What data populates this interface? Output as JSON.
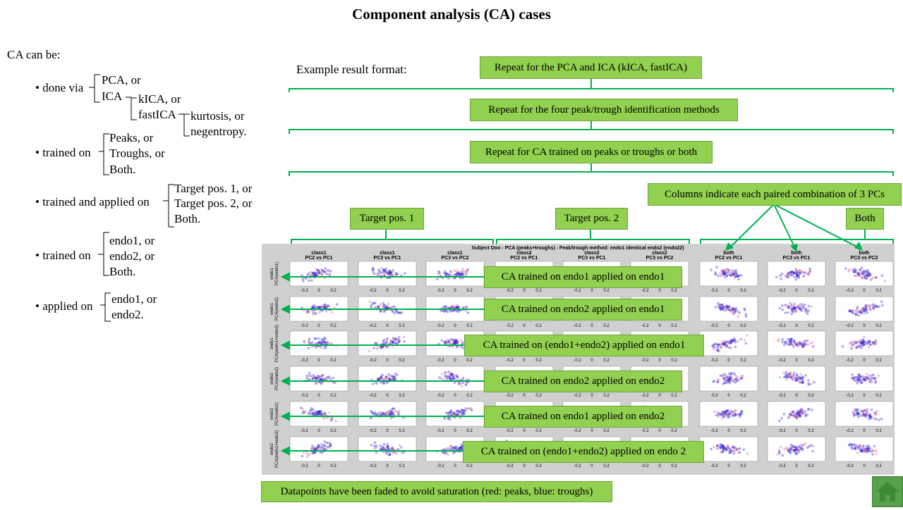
{
  "title": "Component analysis (CA) cases",
  "left": {
    "heading": "CA can be:",
    "done_via": {
      "label": "• done via",
      "opt1": "PCA, or",
      "opt2": "ICA",
      "ica_opt1": "kICA, or",
      "ica_opt2": "fastICA",
      "fast_opt1": "kurtosis, or",
      "fast_opt2": "negentropy."
    },
    "trained_on_peaks": {
      "label": "• trained on",
      "opts": [
        "Peaks, or",
        "Troughs, or",
        "Both."
      ]
    },
    "trained_applied": {
      "label": "• trained and applied on",
      "opts": [
        "Target pos. 1, or",
        "Target pos. 2, or",
        "Both."
      ]
    },
    "trained_on_endo": {
      "label": "• trained on",
      "opts": [
        "endo1, or",
        "endo2, or",
        "Both."
      ]
    },
    "applied_on": {
      "label": "• applied on",
      "opts": [
        "endo1, or",
        "endo2."
      ]
    }
  },
  "example_label": "Example result format:",
  "boxes": {
    "repeat_pca": "Repeat for the PCA and ICA (kICA, fastICA)",
    "repeat_peak": "Repeat for the four peak/trough identification methods",
    "repeat_ca": "Repeat for CA trained on peaks or troughs or both",
    "columns": "Columns indicate each paired combination of 3 PCs",
    "target1": "Target pos. 1",
    "target2": "Target pos. 2",
    "both": "Both",
    "footer": "Datapoints have been faded to avoid saturation (red: peaks, blue: troughs)"
  },
  "rows": [
    "CA trained on endo1 applied on endo1",
    "CA trained on endo2 applied on endo1",
    "CA trained on (endo1+endo2) applied on endo1",
    "CA trained on endo2 applied on endo2",
    "CA trained on endo1 applied on endo2",
    "CA trained on (endo1+endo2) applied on endo 2"
  ],
  "figure": {
    "suptitle": "Subject Doo - PCA (peaks+troughs) - Peak/trough method: endo1 identical endo2 (endo22)",
    "col_titles": [
      [
        "class1",
        "PC2 vs PC1"
      ],
      [
        "class1",
        "PC3 vs PC1"
      ],
      [
        "class1",
        "PC3 vs PC2"
      ],
      [
        "class2",
        "PC2 vs PC1"
      ],
      [
        "class2",
        "PC3 vs PC1"
      ],
      [
        "class2",
        "PC3 vs PC2"
      ],
      [
        "both",
        "PC2 vs PC1"
      ],
      [
        "both",
        "PC3 vs PC1"
      ],
      [
        "both",
        "PC3 vs PC2"
      ]
    ],
    "row_labels": [
      [
        "endo1",
        "PCA(endo1)"
      ],
      [
        "endo1",
        "PCA(endo2)"
      ],
      [
        "endo1",
        "PCA(endo1+endo2)"
      ],
      [
        "endo2",
        "PCA(endo2)"
      ],
      [
        "endo2",
        "PCA(endo1)"
      ],
      [
        "endo2",
        "PCA(endo1+endo2)"
      ]
    ],
    "colors": {
      "peaks": "#e0507a",
      "troughs": "#1010e0"
    }
  }
}
